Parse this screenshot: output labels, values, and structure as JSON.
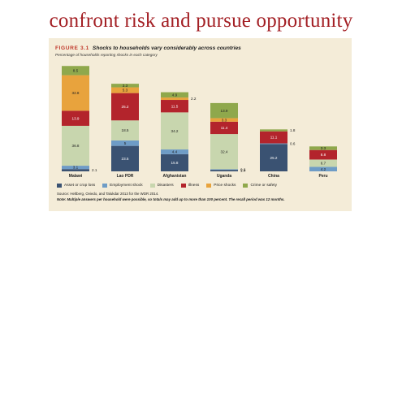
{
  "headline": "confront risk and pursue opportunity",
  "figure": {
    "number": "FIGURE 3.1",
    "title": "Shocks to households vary considerably across countries",
    "subtitle": "Percentage of households reporting shocks in each category",
    "source": "Source: Heltberg, Oviedo, and Talukdar 2013 for the WDR 2014.",
    "note": "Note: Multiple answers per household were possible, so totals may add up to more than 100 percent. The recall period was 12 months."
  },
  "chart_data": {
    "type": "bar",
    "stacked": true,
    "categories": [
      "Malawi",
      "Lao PDR",
      "Afghanistan",
      "Uganda",
      "China",
      "Peru"
    ],
    "series": [
      {
        "name": "Asset or crop loss",
        "color": "#3a5272",
        "values": [
          2.1,
          23.5,
          15.8,
          1.4,
          25.2,
          0
        ],
        "labels": [
          "2.1",
          "23.5",
          "15.8",
          "1.4",
          "25.2",
          ""
        ]
      },
      {
        "name": "Employment shock",
        "color": "#6e9cc6",
        "values": [
          3.1,
          5,
          4.4,
          0.6,
          0.6,
          4.2
        ],
        "labels": [
          "3.1",
          "5",
          "4.4",
          "0.6",
          "0.6",
          "4.2"
        ]
      },
      {
        "name": "Disasters",
        "color": "#c8d6ae",
        "values": [
          36.8,
          18.5,
          34.2,
          32.4,
          0,
          6.7
        ],
        "labels": [
          "36.8",
          "18.5",
          "34.2",
          "32.4",
          "",
          "6.7"
        ]
      },
      {
        "name": "Illness",
        "color": "#b3242c",
        "values": [
          13.9,
          25.2,
          11.5,
          11.4,
          11.1,
          8.8
        ],
        "labels": [
          "13.9",
          "25.2",
          "11.5",
          "11.4",
          "11.1",
          "8.8"
        ]
      },
      {
        "name": "Price shocks",
        "color": "#e8a33d",
        "values": [
          32.8,
          5.3,
          2.2,
          3.3,
          0,
          0
        ],
        "labels": [
          "32.8",
          "5.3",
          "2.2",
          "3.3",
          "",
          ""
        ]
      },
      {
        "name": "Crime or safety",
        "color": "#8fa84c",
        "values": [
          8.5,
          3.3,
          4.9,
          13.9,
          1.8,
          3.3
        ],
        "labels": [
          "8.5",
          "3.3",
          "4.9",
          "13.9",
          "1.8",
          "3.3"
        ]
      }
    ],
    "xlabel": "",
    "ylabel": "",
    "ylim": [
      0,
      100
    ],
    "grid": false,
    "legend": "bottom"
  }
}
